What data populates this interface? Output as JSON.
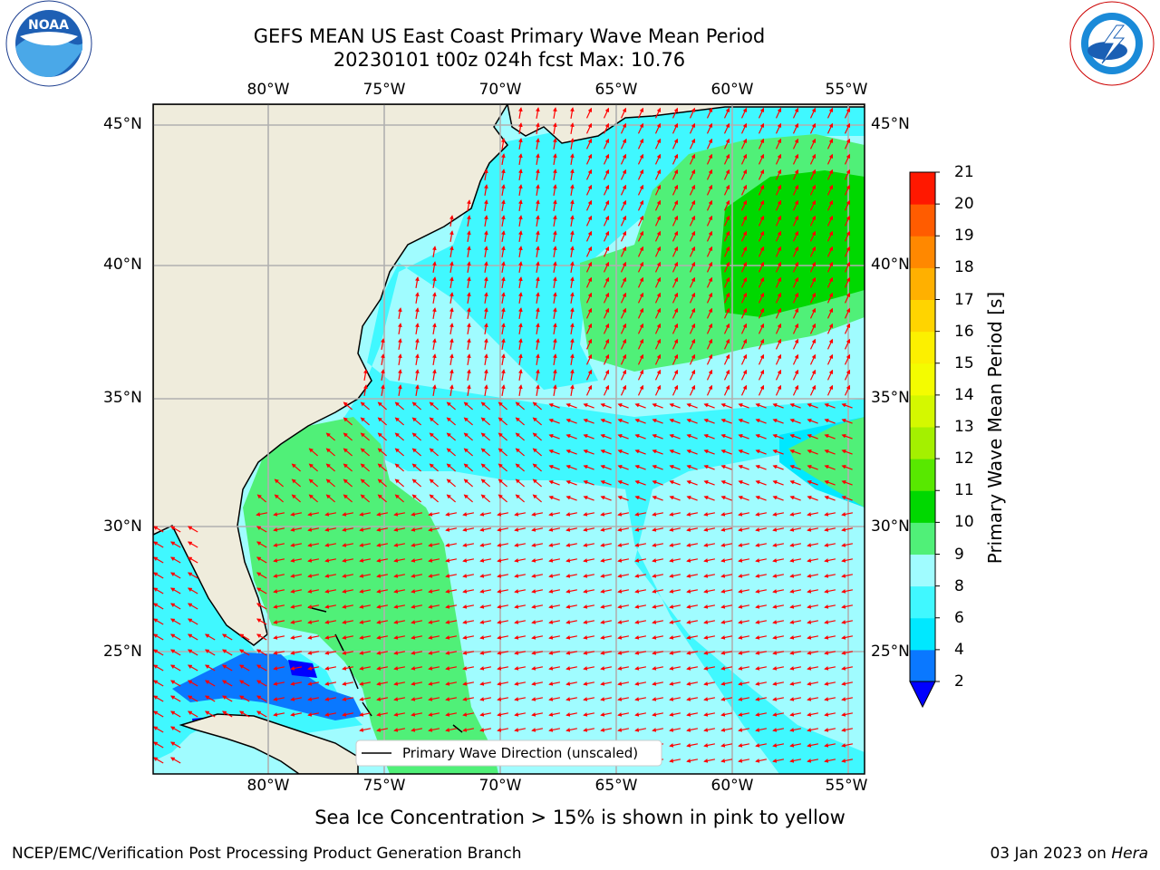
{
  "title": {
    "line1": "GEFS MEAN US East Coast Primary Wave Mean Period",
    "line2": "20230101 t00z 024h fcst   Max: 10.76"
  },
  "map": {
    "longitude_ticks": [
      "80°W",
      "75°W",
      "70°W",
      "65°W",
      "60°W",
      "55°W"
    ],
    "latitude_ticks": [
      "45°N",
      "40°N",
      "35°N",
      "30°N",
      "25°N"
    ],
    "legend_label": "Primary Wave Direction (unscaled)",
    "land_color": "#efecdc",
    "gridline_color": "#b0b0b0",
    "arrow_color": "#ff0000"
  },
  "colorbar": {
    "label": "Primary Wave Mean Period [s]",
    "ticks": [
      "2",
      "4",
      "6",
      "8",
      "9",
      "10",
      "11",
      "12",
      "13",
      "14",
      "15",
      "16",
      "17",
      "18",
      "19",
      "20",
      "21"
    ],
    "colors": [
      "#0a78ff",
      "#00e8ff",
      "#40f8ff",
      "#a0fcff",
      "#50f078",
      "#00d800",
      "#58e800",
      "#a4f000",
      "#d4f800",
      "#f4fc00",
      "#fcf000",
      "#ffd400",
      "#ffb000",
      "#ff8800",
      "#ff5c00",
      "#ff1800",
      "#0000ff"
    ]
  },
  "note": "Sea Ice Concentration > 15% is shown in pink to yellow",
  "footer": {
    "left": "NCEP/EMC/Verification Post Processing Product Generation Branch",
    "right_date": "03 Jan 2023 on ",
    "right_machine": "Hera"
  },
  "logos": {
    "noaa_text": "NOAA",
    "noaa_ring": "NATIONAL OCEANIC AND ATMOSPHERIC ADMINISTRATION · U.S. DEPARTMENT OF COMMERCE",
    "nws_ring": "NATIONAL WEATHER SERVICE"
  }
}
